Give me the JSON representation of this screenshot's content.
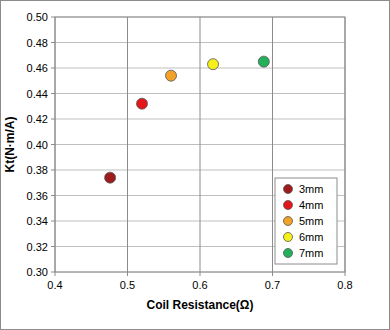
{
  "chart_data": {
    "type": "scatter",
    "x_label": "Coil Resistance(Ω)",
    "y_label": "Kt(N·m/A)",
    "series": [
      {
        "name": "3mm",
        "color": "#9e1c1c",
        "marker": "circle",
        "x": [
          0.476
        ],
        "values": [
          0.374
        ]
      },
      {
        "name": "4mm",
        "color": "#e3161b",
        "marker": "circle",
        "x": [
          0.52
        ],
        "values": [
          0.432
        ]
      },
      {
        "name": "5mm",
        "color": "#f2a22a",
        "marker": "circle",
        "x": [
          0.56
        ],
        "values": [
          0.454
        ]
      },
      {
        "name": "6mm",
        "color": "#f5ef1a",
        "marker": "circle",
        "x": [
          0.618
        ],
        "values": [
          0.463
        ]
      },
      {
        "name": "7mm",
        "color": "#23b05a",
        "marker": "circle",
        "x": [
          0.688
        ],
        "values": [
          0.465
        ]
      }
    ],
    "xlim": [
      0.4,
      0.8
    ],
    "xticks": [
      0.4,
      0.5,
      0.6,
      0.7,
      0.8
    ],
    "ylim": [
      0.3,
      0.5
    ],
    "yticks": [
      {
        "value": 0.3,
        "label": "0.30"
      },
      {
        "value": 0.32,
        "label": "0.32"
      },
      {
        "value": 0.34,
        "label": "0.34"
      },
      {
        "value": 0.36,
        "label": "0.36"
      },
      {
        "value": 0.38,
        "label": "0.38"
      },
      {
        "value": 0.4,
        "label": "0.40"
      },
      {
        "value": 0.42,
        "label": "0.42"
      },
      {
        "value": 0.44,
        "label": "0.44"
      },
      {
        "value": 0.46,
        "label": "0.46"
      },
      {
        "value": 0.48,
        "label": "0.48"
      },
      {
        "value": 0.5,
        "label": "0.50"
      }
    ],
    "grid": true,
    "legend": "lower right"
  }
}
